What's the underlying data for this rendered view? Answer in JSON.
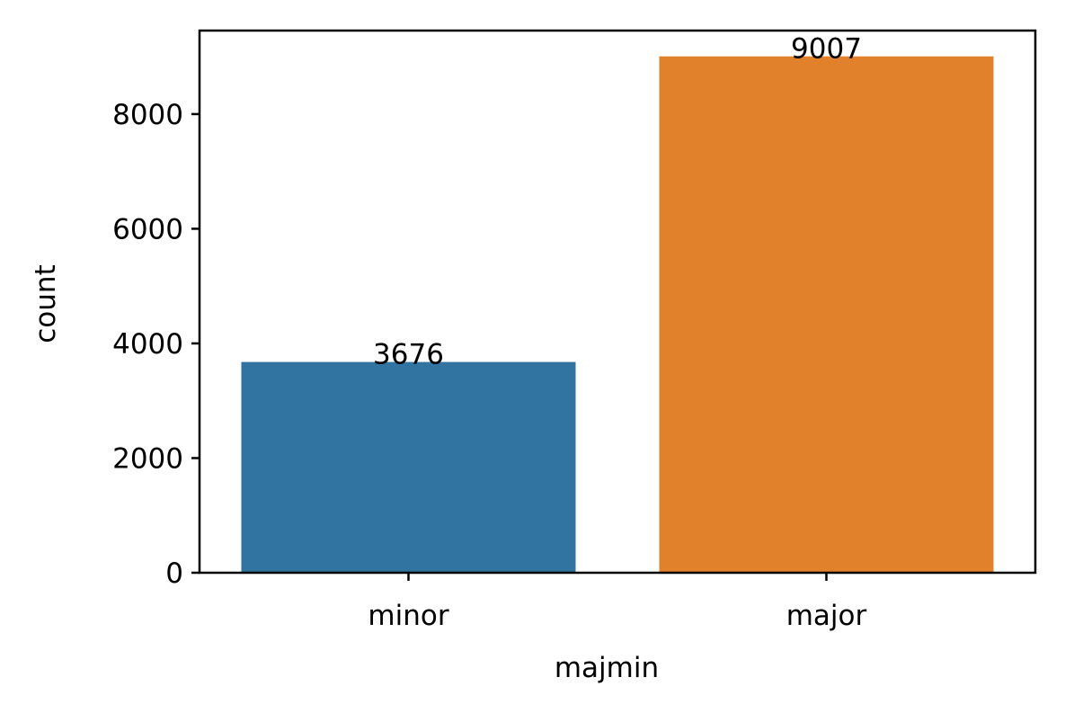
{
  "chart_data": {
    "type": "bar",
    "categories": [
      "minor",
      "major"
    ],
    "values": [
      3676,
      9007
    ],
    "data_labels": [
      "3676",
      "9007"
    ],
    "colors": [
      "#3274a1",
      "#e1812c"
    ],
    "title": "",
    "xlabel": "majmin",
    "ylabel": "count",
    "ylim": [
      0,
      9457
    ],
    "yticks": [
      0,
      2000,
      4000,
      6000,
      8000
    ],
    "ytick_labels": [
      "0",
      "2000",
      "4000",
      "6000",
      "8000"
    ],
    "grid": false,
    "legend": "none"
  }
}
